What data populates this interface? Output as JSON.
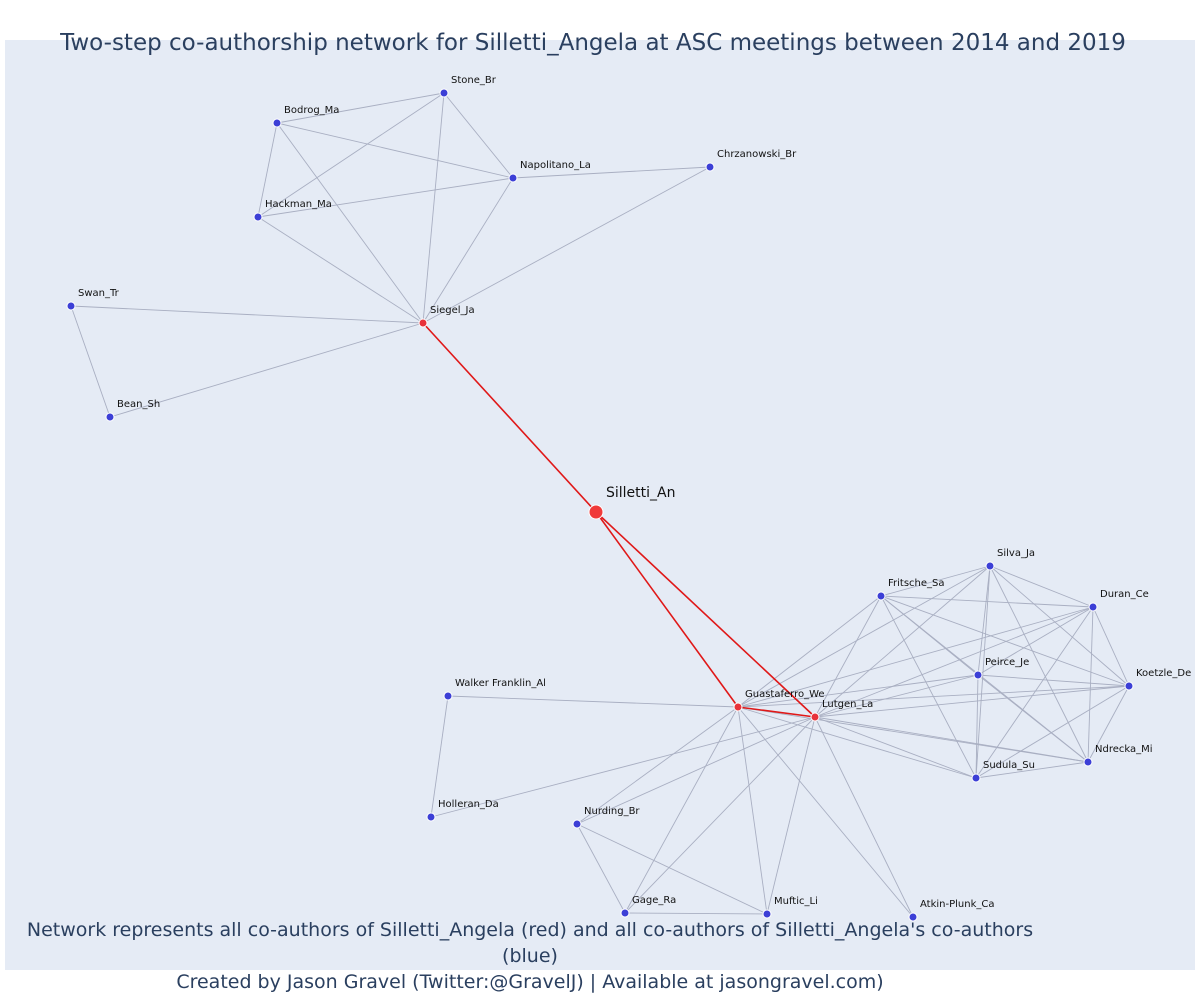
{
  "title": "Two-step co-authorship network for Silletti_Angela at ASC meetings between 2014 and 2019",
  "footnote": {
    "line1": "Network represents all co-authors of Silletti_Angela (red) and all co-authors of Silletti_Angela's co-authors (blue)",
    "line2": "Created by Jason Gravel (Twitter:@GravelJ) | Available at jasongravel.com)"
  },
  "colors": {
    "plot_bg": "#e5ebf5",
    "center_node": "#f03a3a",
    "coauthor_node": "#e8323a",
    "second_step_node": "#3c3fd6",
    "center_edge": "#e01818",
    "other_edge": "#a9afc2"
  },
  "nodes": [
    {
      "id": "Silletti_An",
      "group": "center"
    },
    {
      "id": "Siegel_Ja",
      "group": "coauthor"
    },
    {
      "id": "Guastaferro_We",
      "group": "coauthor"
    },
    {
      "id": "Lutgen_La",
      "group": "coauthor"
    },
    {
      "id": "Stone_Br",
      "group": "second"
    },
    {
      "id": "Bodrog_Ma",
      "group": "second"
    },
    {
      "id": "Napolitano_La",
      "group": "second"
    },
    {
      "id": "Chrzanowski_Br",
      "group": "second"
    },
    {
      "id": "Hackman_Ma",
      "group": "second"
    },
    {
      "id": "Swan_Tr",
      "group": "second"
    },
    {
      "id": "Bean_Sh",
      "group": "second"
    },
    {
      "id": "Silva_Ja",
      "group": "second"
    },
    {
      "id": "Fritsche_Sa",
      "group": "second"
    },
    {
      "id": "Duran_Ce",
      "group": "second"
    },
    {
      "id": "Peirce_Je",
      "group": "second"
    },
    {
      "id": "Koetzle_De",
      "group": "second"
    },
    {
      "id": "Ndrecka_Mi",
      "group": "second"
    },
    {
      "id": "Sudula_Su",
      "group": "second"
    },
    {
      "id": "Walker Franklin_Al",
      "group": "second"
    },
    {
      "id": "Holleran_Da",
      "group": "second"
    },
    {
      "id": "Nurding_Br",
      "group": "second"
    },
    {
      "id": "Gage_Ra",
      "group": "second"
    },
    {
      "id": "Muftic_Li",
      "group": "second"
    },
    {
      "id": "Atkin-Plunk_Ca",
      "group": "second"
    }
  ],
  "edges": [
    [
      "Silletti_An",
      "Siegel_Ja"
    ],
    [
      "Silletti_An",
      "Guastaferro_We"
    ],
    [
      "Silletti_An",
      "Lutgen_La"
    ],
    [
      "Guastaferro_We",
      "Lutgen_La"
    ],
    [
      "Siegel_Ja",
      "Stone_Br"
    ],
    [
      "Siegel_Ja",
      "Bodrog_Ma"
    ],
    [
      "Siegel_Ja",
      "Napolitano_La"
    ],
    [
      "Siegel_Ja",
      "Chrzanowski_Br"
    ],
    [
      "Siegel_Ja",
      "Hackman_Ma"
    ],
    [
      "Siegel_Ja",
      "Swan_Tr"
    ],
    [
      "Siegel_Ja",
      "Bean_Sh"
    ],
    [
      "Stone_Br",
      "Bodrog_Ma"
    ],
    [
      "Stone_Br",
      "Napolitano_La"
    ],
    [
      "Stone_Br",
      "Hackman_Ma"
    ],
    [
      "Bodrog_Ma",
      "Napolitano_La"
    ],
    [
      "Bodrog_Ma",
      "Hackman_Ma"
    ],
    [
      "Napolitano_La",
      "Hackman_Ma"
    ],
    [
      "Napolitano_La",
      "Chrzanowski_Br"
    ],
    [
      "Swan_Tr",
      "Bean_Sh"
    ],
    [
      "Guastaferro_We",
      "Walker Franklin_Al"
    ],
    [
      "Walker Franklin_Al",
      "Holleran_Da"
    ],
    [
      "Lutgen_La",
      "Holleran_Da"
    ],
    [
      "Guastaferro_We",
      "Nurding_Br"
    ],
    [
      "Lutgen_La",
      "Nurding_Br"
    ],
    [
      "Guastaferro_We",
      "Gage_Ra"
    ],
    [
      "Lutgen_La",
      "Gage_Ra"
    ],
    [
      "Guastaferro_We",
      "Muftic_Li"
    ],
    [
      "Lutgen_La",
      "Muftic_Li"
    ],
    [
      "Guastaferro_We",
      "Atkin-Plunk_Ca"
    ],
    [
      "Lutgen_La",
      "Atkin-Plunk_Ca"
    ],
    [
      "Nurding_Br",
      "Gage_Ra"
    ],
    [
      "Nurding_Br",
      "Muftic_Li"
    ],
    [
      "Gage_Ra",
      "Muftic_Li"
    ],
    [
      "Guastaferro_We",
      "Silva_Ja"
    ],
    [
      "Guastaferro_We",
      "Fritsche_Sa"
    ],
    [
      "Guastaferro_We",
      "Duran_Ce"
    ],
    [
      "Guastaferro_We",
      "Peirce_Je"
    ],
    [
      "Guastaferro_We",
      "Koetzle_De"
    ],
    [
      "Guastaferro_We",
      "Ndrecka_Mi"
    ],
    [
      "Guastaferro_We",
      "Sudula_Su"
    ],
    [
      "Lutgen_La",
      "Silva_Ja"
    ],
    [
      "Lutgen_La",
      "Fritsche_Sa"
    ],
    [
      "Lutgen_La",
      "Duran_Ce"
    ],
    [
      "Lutgen_La",
      "Peirce_Je"
    ],
    [
      "Lutgen_La",
      "Koetzle_De"
    ],
    [
      "Lutgen_La",
      "Ndrecka_Mi"
    ],
    [
      "Lutgen_La",
      "Sudula_Su"
    ],
    [
      "Silva_Ja",
      "Fritsche_Sa"
    ],
    [
      "Silva_Ja",
      "Duran_Ce"
    ],
    [
      "Silva_Ja",
      "Peirce_Je"
    ],
    [
      "Silva_Ja",
      "Koetzle_De"
    ],
    [
      "Silva_Ja",
      "Ndrecka_Mi"
    ],
    [
      "Silva_Ja",
      "Sudula_Su"
    ],
    [
      "Fritsche_Sa",
      "Duran_Ce"
    ],
    [
      "Fritsche_Sa",
      "Peirce_Je"
    ],
    [
      "Fritsche_Sa",
      "Koetzle_De"
    ],
    [
      "Fritsche_Sa",
      "Ndrecka_Mi"
    ],
    [
      "Fritsche_Sa",
      "Sudula_Su"
    ],
    [
      "Duran_Ce",
      "Peirce_Je"
    ],
    [
      "Duran_Ce",
      "Koetzle_De"
    ],
    [
      "Duran_Ce",
      "Ndrecka_Mi"
    ],
    [
      "Duran_Ce",
      "Sudula_Su"
    ],
    [
      "Peirce_Je",
      "Koetzle_De"
    ],
    [
      "Peirce_Je",
      "Ndrecka_Mi"
    ],
    [
      "Peirce_Je",
      "Sudula_Su"
    ],
    [
      "Koetzle_De",
      "Ndrecka_Mi"
    ],
    [
      "Koetzle_De",
      "Sudula_Su"
    ],
    [
      "Ndrecka_Mi",
      "Sudula_Su"
    ]
  ]
}
